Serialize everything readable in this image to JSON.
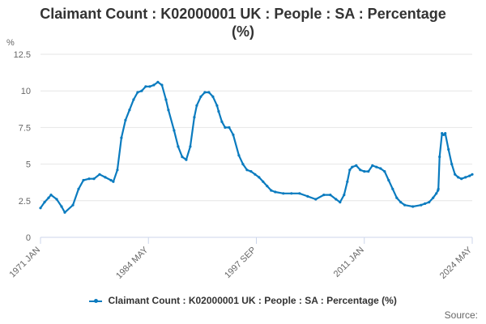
{
  "chart_data": {
    "type": "line",
    "title_line1": "Claimant Count : K02000001 UK : People : SA : Percentage",
    "title_line2": "(%)",
    "ylabel": "%",
    "xlabel": "",
    "ylim": [
      0,
      12.5
    ],
    "yticks": [
      "0",
      "2.5",
      "5",
      "7.5",
      "10",
      "12.5"
    ],
    "xticks": [
      "1971 JAN",
      "1984 MAY",
      "1997 SEP",
      "2011 JAN",
      "2024 MAY"
    ],
    "xlim": [
      1971.0,
      2024.33
    ],
    "grid": true,
    "legend_position": "bottom",
    "line_color": "#0a7bbf",
    "series": [
      {
        "name": "Claimant Count : K02000001 UK : People : SA : Percentage (%)",
        "x": [
          1971.0,
          1971.5,
          1972.0,
          1972.3,
          1973.0,
          1973.6,
          1974.0,
          1975.0,
          1975.7,
          1976.3,
          1977.0,
          1977.6,
          1978.3,
          1979.0,
          1979.7,
          1980.0,
          1980.5,
          1981.0,
          1981.5,
          1982.0,
          1982.5,
          1983.0,
          1983.5,
          1984.0,
          1984.5,
          1985.0,
          1985.5,
          1986.0,
          1986.5,
          1986.8,
          1987.5,
          1988.0,
          1988.5,
          1989.0,
          1989.5,
          1990.0,
          1990.3,
          1990.8,
          1991.3,
          1991.8,
          1992.3,
          1992.8,
          1993.0,
          1993.4,
          1993.8,
          1994.3,
          1994.8,
          1995.5,
          1996.0,
          1996.5,
          1997.0,
          1997.5,
          1998.0,
          1998.5,
          1999.0,
          1999.5,
          2000.0,
          2001.0,
          2002.0,
          2003.0,
          2004.0,
          2005.0,
          2006.0,
          2006.8,
          2007.5,
          2008.0,
          2008.5,
          2008.9,
          2009.2,
          2009.5,
          2010.0,
          2010.5,
          2011.0,
          2011.5,
          2012.0,
          2012.5,
          2013.0,
          2013.5,
          2014.0,
          2014.5,
          2015.0,
          2015.5,
          2016.0,
          2017.0,
          2018.0,
          2018.5,
          2019.0,
          2019.5,
          2019.9,
          2020.1,
          2020.15,
          2020.3,
          2020.6,
          2020.8,
          2021.0,
          2021.4,
          2021.8,
          2022.2,
          2022.6,
          2023.0,
          2023.5,
          2024.0,
          2024.33
        ],
        "values": [
          2.0,
          2.4,
          2.7,
          2.9,
          2.6,
          2.1,
          1.7,
          2.2,
          3.3,
          3.9,
          4.0,
          4.0,
          4.3,
          4.1,
          3.9,
          3.8,
          4.6,
          6.8,
          8.0,
          8.7,
          9.4,
          9.9,
          10.0,
          10.3,
          10.3,
          10.4,
          10.6,
          10.4,
          9.4,
          8.7,
          7.3,
          6.2,
          5.5,
          5.3,
          6.2,
          8.2,
          9.0,
          9.6,
          9.9,
          9.9,
          9.6,
          9.0,
          8.6,
          7.9,
          7.5,
          7.5,
          7.0,
          5.6,
          5.0,
          4.6,
          4.5,
          4.3,
          4.1,
          3.8,
          3.5,
          3.2,
          3.1,
          3.0,
          3.0,
          3.0,
          2.8,
          2.6,
          2.9,
          2.9,
          2.6,
          2.4,
          2.9,
          3.8,
          4.6,
          4.8,
          4.9,
          4.6,
          4.5,
          4.5,
          4.9,
          4.8,
          4.7,
          4.5,
          3.9,
          3.3,
          2.7,
          2.4,
          2.2,
          2.1,
          2.2,
          2.3,
          2.4,
          2.7,
          3.0,
          3.2,
          3.3,
          5.5,
          7.1,
          7.0,
          7.1,
          6.0,
          5.0,
          4.3,
          4.1,
          4.0,
          4.1,
          4.2,
          4.3
        ]
      }
    ],
    "legend_label": "Claimant Count : K02000001 UK : People : SA : Percentage (%)",
    "source_label": "Source:"
  }
}
